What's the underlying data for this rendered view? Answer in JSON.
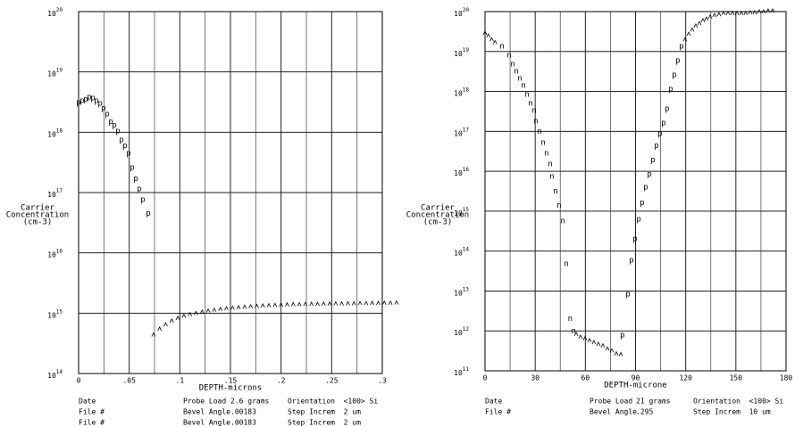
{
  "chart_data": [
    {
      "type": "scatter",
      "ylog": true,
      "xlabel": "DEPTH-microns",
      "ylabel": [
        "Carrier",
        "Concentration",
        "(cm-3)"
      ],
      "xlim": [
        0,
        0.3
      ],
      "ylim": [
        100000000000000.0,
        1e+20
      ],
      "xticks": [
        0,
        {
          "value": 0.05,
          "label": ".05"
        },
        {
          "value": 0.1,
          "label": ".1"
        },
        {
          "value": 0.15,
          "label": ".15"
        },
        {
          "value": 0.2,
          "label": ".2"
        },
        {
          "value": 0.25,
          "label": ".25"
        },
        {
          "value": 0.3,
          "label": ".3"
        }
      ],
      "xminorticks": [
        0.025,
        0.075,
        0.125,
        0.175,
        0.225,
        0.275
      ],
      "yticks": [
        {
          "value": 100000000000000.0,
          "label": "10",
          "exponent": "14"
        },
        {
          "value": 1000000000000000.0,
          "label": "10",
          "exponent": "15"
        },
        {
          "value": 1e+16,
          "label": "10",
          "exponent": "16"
        },
        {
          "value": 1e+17,
          "label": "10",
          "exponent": "17"
        },
        {
          "value": 1e+18,
          "label": "10",
          "exponent": "18"
        },
        {
          "value": 1e+19,
          "label": "10",
          "exponent": "19"
        },
        {
          "value": 1e+20,
          "label": "10",
          "exponent": "20"
        }
      ],
      "grid": true,
      "color": "#000000",
      "series": [
        {
          "marker": "p",
          "x": [
            0,
            0.0035,
            0.007,
            0.0106,
            0.0141,
            0.0176,
            0.0212,
            0.0247,
            0.0282,
            0.0318,
            0.0353,
            0.0388,
            0.0424,
            0.0459,
            0.0494,
            0.0529,
            0.0565,
            0.06,
            0.0635,
            0.0688
          ],
          "values": [
            3.1e+18,
            3.3e+18,
            3.5e+18,
            3.8e+18,
            3.7e+18,
            3.3e+18,
            3e+18,
            2.5e+18,
            2e+18,
            1.5e+18,
            1.3e+18,
            1.05e+18,
            7.4e+17,
            6e+17,
            4.5e+17,
            2.6e+17,
            1.7e+17,
            1.15e+17,
            7.6e+16,
            4.5e+16
          ]
        },
        {
          "marker": "tick",
          "x": [
            0.074,
            0.08,
            0.086,
            0.092,
            0.098,
            0.104,
            0.11,
            0.116,
            0.122,
            0.128,
            0.134,
            0.14,
            0.146,
            0.152,
            0.158,
            0.164,
            0.17,
            0.176,
            0.182,
            0.188,
            0.194,
            0.2,
            0.206,
            0.212,
            0.218,
            0.224,
            0.23,
            0.236,
            0.242,
            0.248,
            0.254,
            0.26,
            0.266,
            0.272,
            0.278,
            0.284,
            0.29,
            0.296,
            0.302,
            0.308,
            0.314
          ],
          "values": [
            440000000000000.0,
            550000000000000.0,
            650000000000000.0,
            750000000000000.0,
            830000000000000.0,
            900000000000000.0,
            960000000000000.0,
            1000000000000000.0,
            1050000000000000.0,
            1100000000000000.0,
            1130000000000000.0,
            1170000000000000.0,
            1200000000000000.0,
            1220000000000000.0,
            1250000000000000.0,
            1270000000000000.0,
            1290000000000000.0,
            1310000000000000.0,
            1330000000000000.0,
            1350000000000000.0,
            1360000000000000.0,
            1380000000000000.0,
            1390000000000000.0,
            1400000000000000.0,
            1400000000000000.0,
            1410000000000000.0,
            1420000000000000.0,
            1420000000000000.0,
            1430000000000000.0,
            1430000000000000.0,
            1440000000000000.0,
            1440000000000000.0,
            1450000000000000.0,
            1450000000000000.0,
            1460000000000000.0,
            1460000000000000.0,
            1470000000000000.0,
            1470000000000000.0,
            1480000000000000.0,
            1480000000000000.0,
            1490000000000000.0
          ]
        }
      ],
      "info": [
        [
          "Date",
          "Probe Load",
          "2.6 grams",
          "Orientation  <100> Si"
        ],
        [
          "File #",
          "Bevel Angle",
          ".00183",
          "Step Increm  2 um"
        ],
        [
          "File #",
          "Bevel Angle",
          ".00183",
          "Step Increm  2 um"
        ]
      ]
    },
    {
      "type": "scatter",
      "ylog": true,
      "xlabel": "DEPTH-microne",
      "ylabel": [
        "Carrier",
        "Concentration",
        "(cm-3)"
      ],
      "xlim": [
        0,
        180
      ],
      "ylim": [
        100000000000.0,
        1e+20
      ],
      "xticks": [
        0,
        30,
        60,
        90,
        120,
        150,
        180
      ],
      "xminorticks": [
        15,
        45,
        75,
        105,
        135,
        165
      ],
      "yticks": [
        {
          "value": 100000000000.0,
          "label": "10",
          "exponent": "11"
        },
        {
          "value": 1000000000000.0,
          "label": "10",
          "exponent": "12"
        },
        {
          "value": 10000000000000.0,
          "label": "10",
          "exponent": "13"
        },
        {
          "value": 100000000000000.0,
          "label": "10",
          "exponent": "14"
        },
        {
          "value": 1000000000000000.0,
          "label": "10",
          "exponent": "15"
        },
        {
          "value": 1e+16,
          "label": "10",
          "exponent": "16"
        },
        {
          "value": 1e+17,
          "label": "10",
          "exponent": "17"
        },
        {
          "value": 1e+18,
          "label": "10",
          "exponent": "18"
        },
        {
          "value": 1e+19,
          "label": "10",
          "exponent": "19"
        },
        {
          "value": 1e+20,
          "label": "10",
          "exponent": "20"
        }
      ],
      "grid": true,
      "color": "#000000",
      "series": [
        {
          "marker": "tick",
          "x": [
            0,
            2,
            4,
            6
          ],
          "values": [
            2.9e+19,
            2.5e+19,
            2e+19,
            1.7e+19
          ]
        },
        {
          "marker": "n",
          "x": [
            10.1,
            14.4,
            16.6,
            18.7,
            20.8,
            23.0,
            25.1,
            27.2,
            29.4,
            30.4,
            32.6,
            34.7,
            36.8,
            39.0,
            40.0,
            42.2,
            44.3,
            46.5,
            48.6,
            50.9,
            53.0
          ],
          "values": [
            1.35e+19,
            8.1e+18,
            4.8e+18,
            3.2e+18,
            2.1e+18,
            1.4e+18,
            8.3e+17,
            5e+17,
            3.3e+17,
            1.8e+17,
            9.8e+16,
            5.2e+16,
            2.8e+16,
            1.5e+16,
            7400000000000000.0,
            3200000000000000.0,
            1400000000000000.0,
            560000000000000.0,
            48000000000000.0,
            2000000000000.0,
            980000000000.0
          ]
        },
        {
          "marker": "tick",
          "x": [
            54.5,
            57.1,
            59.8,
            62.5,
            65.1,
            67.8,
            70.5,
            73.2,
            75.8,
            78.5,
            81.2
          ],
          "values": [
            830000000000.0,
            710000000000.0,
            650000000000.0,
            580000000000.0,
            520000000000.0,
            470000000000.0,
            430000000000.0,
            360000000000.0,
            320000000000.0,
            270000000000.0,
            260000000000.0
          ]
        },
        {
          "marker": "p",
          "x": [
            82.2,
            85.5,
            87.6,
            89.7,
            91.9,
            94.0,
            96.1,
            98.3,
            100.4,
            102.5,
            104.7,
            106.8,
            108.9,
            111.0,
            113.2,
            115.3,
            117.5
          ],
          "values": [
            790000000000.0,
            8300000000000.0,
            59000000000000.0,
            200000000000000.0,
            630000000000000.0,
            1600000000000000.0,
            4000000000000000.0,
            8300000000000000.0,
            1.9e+16,
            4.3e+16,
            8.7e+16,
            1.6e+17,
            3.7e+17,
            1.15e+18,
            2.6e+18,
            5.9e+18,
            1.35e+19
          ]
        },
        {
          "marker": "tick",
          "x": [
            119.6,
            121.8,
            123.9,
            126.0,
            128.2,
            130.3,
            132.4,
            134.6,
            137.2,
            139.9,
            142.6,
            145.3,
            147.9,
            150.6,
            153.3,
            155.9,
            158.6,
            161.3,
            164.0,
            166.6,
            169.3,
            172.0
          ],
          "values": [
            2e+19,
            2.75e+19,
            3.5e+19,
            4.4e+19,
            5.1e+19,
            6e+19,
            6.6e+19,
            7.4e+19,
            8.1e+19,
            8.5e+19,
            9.1e+19,
            9.1e+19,
            9.1e+19,
            9.1e+19,
            9.1e+19,
            9.1e+19,
            9.5e+19,
            9.5e+19,
            1e+20,
            1e+20,
            1.05e+20,
            1.05e+20
          ]
        }
      ],
      "info": [
        [
          "Date",
          "Probe Load",
          "21 grams",
          "Orientation  <100> Si"
        ],
        [
          "File #",
          "Bevel Angle",
          ".295",
          "Step Increm  10 um"
        ]
      ]
    }
  ]
}
